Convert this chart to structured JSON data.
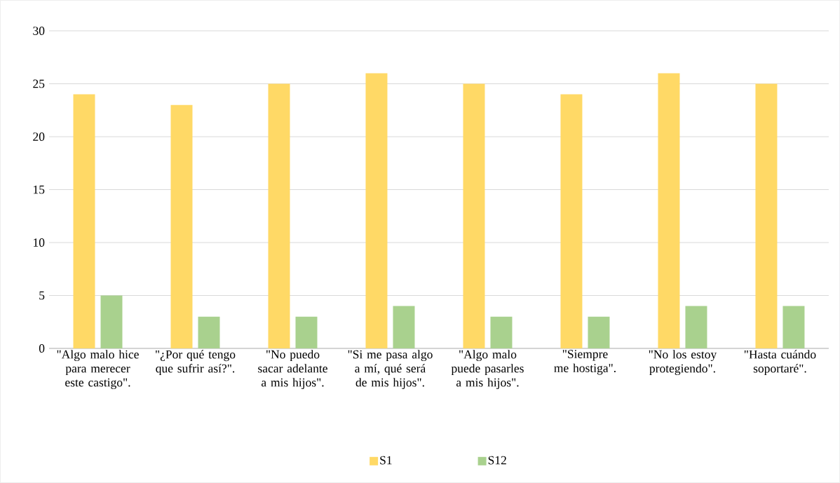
{
  "chart_data": {
    "type": "bar",
    "categories": [
      "\"Algo malo hice para merecer este castigo\".",
      "\"¿Por qué tengo que sufrir así?\".",
      "\"No puedo sacar adelante a mis hijos\".",
      "\"Si me pasa algo a mí, qué será de mis hijos\".",
      "\"Algo malo puede pasarles a mis hijos\".",
      "\"Siempre me hostiga\".",
      "\"No los estoy protegiendo\".",
      "\"Hasta cuándo soportaré\"."
    ],
    "series": [
      {
        "name": "S1",
        "color": "#ffd966",
        "values": [
          24,
          23,
          25,
          26,
          25,
          24,
          26,
          25
        ]
      },
      {
        "name": "S12",
        "color": "#a9d18e",
        "values": [
          5,
          3,
          3,
          4,
          3,
          3,
          4,
          4
        ]
      }
    ],
    "ylim": [
      0,
      30
    ],
    "yticks": [
      0,
      5,
      10,
      15,
      20,
      25,
      30
    ],
    "grid": "y",
    "legend": "bottom"
  }
}
